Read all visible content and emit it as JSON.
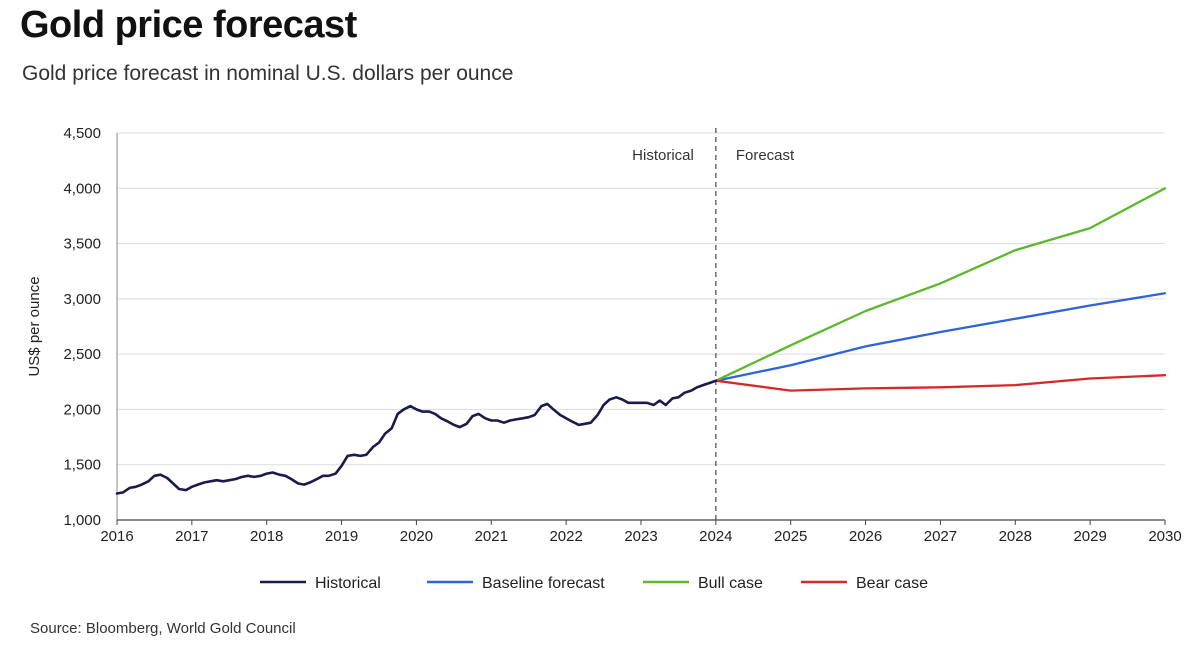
{
  "title": "Gold price forecast",
  "subtitle": "Gold price forecast in nominal U.S. dollars per ounce",
  "source": "Source: Bloomberg, World Gold Council",
  "colors": {
    "historical": "#1b1b4b",
    "baseline": "#2f64d8",
    "bull": "#5cb82c",
    "bear": "#d32a2a",
    "grid": "#dcdcdc",
    "divider": "#555555"
  },
  "chart_data": {
    "type": "line",
    "ylabel": "US$ per ounce",
    "xlim": [
      2016,
      2030
    ],
    "ylim": [
      1000,
      4500
    ],
    "x_ticks": [
      2016,
      2017,
      2018,
      2019,
      2020,
      2021,
      2022,
      2023,
      2024,
      2025,
      2026,
      2027,
      2028,
      2029,
      2030
    ],
    "y_ticks": [
      1000,
      1500,
      2000,
      2500,
      3000,
      3500,
      4000,
      4500
    ],
    "y_tick_labels": [
      "1,000",
      "1,500",
      "2,000",
      "2,500",
      "3,000",
      "3,500",
      "4,000",
      "4,500"
    ],
    "grid": "horizontal",
    "legend": "bottom",
    "divider": {
      "x": 2024,
      "left_label": "Historical",
      "right_label": "Forecast"
    },
    "series": [
      {
        "name": "Historical",
        "color_key": "historical",
        "points": [
          [
            2016.0,
            1240
          ],
          [
            2016.08,
            1250
          ],
          [
            2016.17,
            1290
          ],
          [
            2016.25,
            1300
          ],
          [
            2016.33,
            1320
          ],
          [
            2016.42,
            1350
          ],
          [
            2016.5,
            1400
          ],
          [
            2016.58,
            1410
          ],
          [
            2016.67,
            1380
          ],
          [
            2016.75,
            1330
          ],
          [
            2016.83,
            1280
          ],
          [
            2016.92,
            1270
          ],
          [
            2017.0,
            1300
          ],
          [
            2017.08,
            1320
          ],
          [
            2017.17,
            1340
          ],
          [
            2017.25,
            1350
          ],
          [
            2017.33,
            1360
          ],
          [
            2017.42,
            1350
          ],
          [
            2017.5,
            1360
          ],
          [
            2017.58,
            1370
          ],
          [
            2017.67,
            1390
          ],
          [
            2017.75,
            1400
          ],
          [
            2017.83,
            1390
          ],
          [
            2017.92,
            1400
          ],
          [
            2018.0,
            1420
          ],
          [
            2018.08,
            1430
          ],
          [
            2018.17,
            1410
          ],
          [
            2018.25,
            1400
          ],
          [
            2018.33,
            1370
          ],
          [
            2018.42,
            1330
          ],
          [
            2018.5,
            1320
          ],
          [
            2018.58,
            1340
          ],
          [
            2018.67,
            1370
          ],
          [
            2018.75,
            1400
          ],
          [
            2018.83,
            1400
          ],
          [
            2018.92,
            1420
          ],
          [
            2019.0,
            1490
          ],
          [
            2019.08,
            1580
          ],
          [
            2019.17,
            1590
          ],
          [
            2019.25,
            1580
          ],
          [
            2019.33,
            1590
          ],
          [
            2019.42,
            1660
          ],
          [
            2019.5,
            1700
          ],
          [
            2019.58,
            1780
          ],
          [
            2019.67,
            1830
          ],
          [
            2019.75,
            1960
          ],
          [
            2019.83,
            2000
          ],
          [
            2019.92,
            2030
          ],
          [
            2020.0,
            2000
          ],
          [
            2020.08,
            1980
          ],
          [
            2020.17,
            1980
          ],
          [
            2020.25,
            1960
          ],
          [
            2020.33,
            1920
          ],
          [
            2020.42,
            1890
          ],
          [
            2020.5,
            1860
          ],
          [
            2020.58,
            1840
          ],
          [
            2020.67,
            1870
          ],
          [
            2020.75,
            1940
          ],
          [
            2020.83,
            1960
          ],
          [
            2020.92,
            1920
          ],
          [
            2021.0,
            1900
          ],
          [
            2021.08,
            1900
          ],
          [
            2021.17,
            1880
          ],
          [
            2021.25,
            1900
          ],
          [
            2021.33,
            1910
          ],
          [
            2021.42,
            1920
          ],
          [
            2021.5,
            1930
          ],
          [
            2021.58,
            1950
          ],
          [
            2021.67,
            2030
          ],
          [
            2021.75,
            2050
          ],
          [
            2021.83,
            2000
          ],
          [
            2021.92,
            1950
          ],
          [
            2022.0,
            1920
          ],
          [
            2022.08,
            1890
          ],
          [
            2022.17,
            1860
          ],
          [
            2022.25,
            1870
          ],
          [
            2022.33,
            1880
          ],
          [
            2022.42,
            1950
          ],
          [
            2022.5,
            2040
          ],
          [
            2022.58,
            2090
          ],
          [
            2022.67,
            2110
          ],
          [
            2022.75,
            2090
          ],
          [
            2022.83,
            2060
          ],
          [
            2022.92,
            2060
          ],
          [
            2023.0,
            2060
          ],
          [
            2023.08,
            2060
          ],
          [
            2023.17,
            2040
          ],
          [
            2023.25,
            2080
          ],
          [
            2023.33,
            2040
          ],
          [
            2023.42,
            2100
          ],
          [
            2023.5,
            2110
          ],
          [
            2023.58,
            2150
          ],
          [
            2023.67,
            2170
          ],
          [
            2023.75,
            2200
          ],
          [
            2023.83,
            2220
          ],
          [
            2023.92,
            2240
          ],
          [
            2024.0,
            2260
          ]
        ]
      },
      {
        "name": "Baseline forecast",
        "color_key": "baseline",
        "points": [
          [
            2024,
            2260
          ],
          [
            2025,
            2400
          ],
          [
            2026,
            2570
          ],
          [
            2027,
            2700
          ],
          [
            2028,
            2820
          ],
          [
            2029,
            2940
          ],
          [
            2030,
            3050
          ]
        ]
      },
      {
        "name": "Bull case",
        "color_key": "bull",
        "points": [
          [
            2024,
            2260
          ],
          [
            2025,
            2580
          ],
          [
            2026,
            2890
          ],
          [
            2027,
            3140
          ],
          [
            2028,
            3440
          ],
          [
            2029,
            3640
          ],
          [
            2030,
            4000
          ]
        ]
      },
      {
        "name": "Bear case",
        "color_key": "bear",
        "points": [
          [
            2024,
            2260
          ],
          [
            2025,
            2170
          ],
          [
            2026,
            2190
          ],
          [
            2027,
            2200
          ],
          [
            2028,
            2220
          ],
          [
            2029,
            2280
          ],
          [
            2030,
            2310
          ]
        ]
      }
    ]
  }
}
